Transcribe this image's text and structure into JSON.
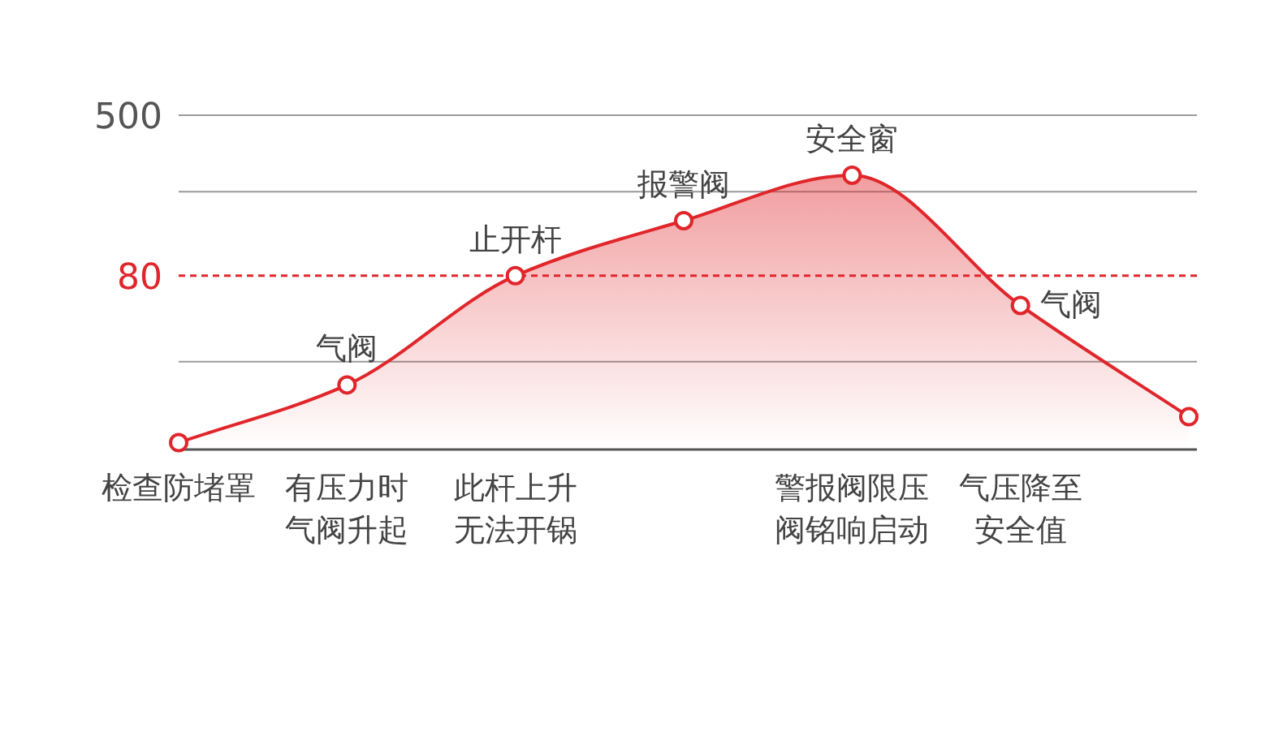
{
  "chart_data": {
    "type": "area",
    "log": "y",
    "categories": [
      "检查防堵罩",
      "有压力时气阀升起",
      "此杆上升无法开锅",
      null,
      "警报阀限压阀铭响启动",
      "气压降至安全值",
      null
    ],
    "series": [
      {
        "color": "#e0262b",
        "values": [
          11.9,
          23,
          80,
          150,
          252,
          57,
          16
        ],
        "value_labels": [
          null,
          "气阀",
          "止开杆",
          "报警阀",
          "安全窗",
          "气阀",
          null
        ]
      }
    ],
    "ylim": [
      11,
      500
    ],
    "yticks": [
      500,
      80,
      {
        "value": 209,
        "label": null
      },
      {
        "value": 30,
        "label": null
      }
    ],
    "ref_lines": [
      {
        "axis": "y",
        "value": 80,
        "color": "#e0262b",
        "line_style": "dashed"
      }
    ],
    "grid": "y",
    "marker": "circle"
  }
}
